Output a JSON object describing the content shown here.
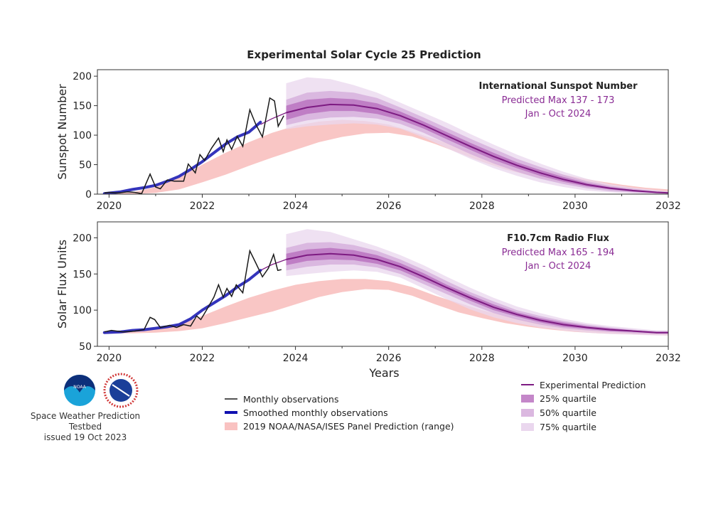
{
  "title": "Experimental Solar Cycle 25 Prediction",
  "footer": {
    "org": "Space Weather Prediction Testbed",
    "issued": "issued 19 Oct 2023",
    "logos": [
      "NOAA",
      "National Weather Service"
    ]
  },
  "legend_left": [
    "Monthly observations",
    "Smoothed monthly observations",
    "2019 NOAA/NASA/ISES Panel Prediction (range)"
  ],
  "legend_right": [
    "Experimental Prediction",
    "25% quartile",
    "50% quartile",
    "75% quartile"
  ],
  "colors": {
    "monthly": "#1a1a1a",
    "smoothed": "#1010b0",
    "panel": "#f6a8a6",
    "median": "#7d1b82",
    "q25": "#b05fb7",
    "q50": "#d2a6d8",
    "q75": "#ead7ee"
  },
  "chart_data": [
    {
      "type": "line",
      "ylabel": "Sunspot Number",
      "xlabel": "",
      "xlim": [
        2019.75,
        2032
      ],
      "ylim": [
        0,
        211
      ],
      "xticks": [
        2020,
        2022,
        2024,
        2026,
        2028,
        2030,
        2032
      ],
      "yticks": [
        0,
        50,
        100,
        150,
        200
      ],
      "annotation": {
        "title": "International Sunspot Number",
        "line1": "Predicted Max 137 - 173",
        "line2": "Jan - Oct 2024"
      },
      "monthly": {
        "x": [
          2019.9,
          2020.0,
          2020.2,
          2020.4,
          2020.55,
          2020.7,
          2020.88,
          2021.0,
          2021.1,
          2021.25,
          2021.4,
          2021.6,
          2021.7,
          2021.85,
          2021.95,
          2022.05,
          2022.2,
          2022.35,
          2022.45,
          2022.53,
          2022.63,
          2022.75,
          2022.87,
          2023.02,
          2023.15,
          2023.29,
          2023.45,
          2023.55,
          2023.63,
          2023.75
        ],
        "y": [
          2,
          3,
          2,
          4,
          3,
          1,
          34,
          12,
          9,
          24,
          22,
          22,
          51,
          36,
          67,
          57,
          78,
          95,
          72,
          92,
          76,
          98,
          81,
          143,
          118,
          97,
          163,
          158,
          115,
          133
        ]
      },
      "smoothed": {
        "x": [
          2019.9,
          2020.25,
          2020.5,
          2020.75,
          2021.0,
          2021.25,
          2021.5,
          2021.75,
          2022.0,
          2022.25,
          2022.5,
          2022.75,
          2023.0,
          2023.25
        ],
        "y": [
          1,
          4,
          8,
          11,
          15,
          22,
          30,
          42,
          55,
          70,
          85,
          97,
          105,
          122
        ]
      },
      "panel_range": {
        "x": [
          2019.75,
          2020.5,
          2021,
          2021.5,
          2022,
          2022.5,
          2023,
          2023.5,
          2024,
          2024.5,
          2025,
          2025.5,
          2026,
          2026.5,
          2027,
          2027.5,
          2028,
          2028.5,
          2029,
          2029.5,
          2030,
          2030.5,
          2031,
          2031.5,
          2032
        ],
        "lower": [
          0,
          0,
          2,
          8,
          20,
          33,
          48,
          62,
          75,
          88,
          97,
          103,
          104,
          98,
          85,
          70,
          55,
          42,
          32,
          23,
          16,
          10,
          6,
          3,
          2
        ],
        "upper": [
          0,
          3,
          12,
          28,
          50,
          70,
          88,
          104,
          116,
          123,
          126,
          124,
          118,
          106,
          93,
          80,
          67,
          56,
          46,
          37,
          29,
          22,
          16,
          11,
          8
        ]
      },
      "prediction": {
        "x": [
          2023.8,
          2024.25,
          2024.75,
          2025.25,
          2025.75,
          2026.25,
          2026.75,
          2027.25,
          2027.75,
          2028.25,
          2028.75,
          2029.25,
          2029.75,
          2030.25,
          2030.75,
          2031.25,
          2031.75,
          2032
        ],
        "median_lead": {
          "x": [
            2023.25,
            2023.5,
            2023.8
          ],
          "y": [
            118,
            128,
            138
          ]
        },
        "median": [
          138,
          147,
          152,
          151,
          145,
          133,
          117,
          99,
          81,
          64,
          49,
          36,
          25,
          16,
          10,
          6,
          3,
          2
        ],
        "q25": {
          "upper": [
            150,
            160,
            163,
            161,
            154,
            140,
            123,
            105,
            87,
            70,
            54,
            41,
            29,
            19,
            12,
            7,
            4,
            3
          ],
          "lower": [
            126,
            136,
            141,
            141,
            136,
            126,
            111,
            93,
            75,
            58,
            44,
            31,
            21,
            13,
            8,
            4,
            2,
            1
          ]
        },
        "q50": {
          "upper": [
            160,
            172,
            175,
            172,
            163,
            147,
            130,
            112,
            94,
            77,
            60,
            46,
            33,
            22,
            14,
            9,
            5,
            4
          ],
          "lower": [
            117,
            125,
            130,
            131,
            128,
            119,
            104,
            86,
            68,
            52,
            38,
            26,
            17,
            10,
            5,
            3,
            1,
            1
          ]
        },
        "q75": {
          "upper": [
            188,
            198,
            195,
            185,
            172,
            155,
            138,
            121,
            102,
            84,
            67,
            52,
            38,
            26,
            17,
            11,
            7,
            5
          ],
          "lower": [
            110,
            115,
            118,
            120,
            118,
            111,
            96,
            78,
            60,
            44,
            31,
            20,
            12,
            6,
            3,
            1,
            0,
            0
          ]
        }
      }
    },
    {
      "type": "line",
      "ylabel": "Solar Flux Units",
      "xlabel": "Years",
      "xlim": [
        2019.75,
        2032
      ],
      "ylim": [
        50,
        222
      ],
      "xticks": [
        2020,
        2022,
        2024,
        2026,
        2028,
        2030,
        2032
      ],
      "yticks": [
        50,
        100,
        150,
        200
      ],
      "annotation": {
        "title": "F10.7cm Radio Flux",
        "line1": "Predicted Max 165 - 194",
        "line2": "Jan - Oct 2024"
      },
      "monthly": {
        "x": [
          2019.9,
          2020.05,
          2020.3,
          2020.55,
          2020.75,
          2020.88,
          2020.98,
          2021.1,
          2021.3,
          2021.45,
          2021.6,
          2021.75,
          2021.88,
          2021.97,
          2022.1,
          2022.25,
          2022.35,
          2022.45,
          2022.53,
          2022.63,
          2022.73,
          2022.87,
          2023.02,
          2023.15,
          2023.29,
          2023.42,
          2023.53,
          2023.62,
          2023.7
        ],
        "y": [
          70,
          72,
          70,
          71,
          73,
          90,
          87,
          76,
          79,
          76,
          80,
          78,
          92,
          87,
          101,
          118,
          135,
          118,
          130,
          119,
          135,
          124,
          182,
          165,
          146,
          158,
          177,
          155,
          156
        ]
      },
      "smoothed": {
        "x": [
          2019.9,
          2020.25,
          2020.5,
          2020.75,
          2021.0,
          2021.25,
          2021.5,
          2021.75,
          2022.0,
          2022.25,
          2022.5,
          2022.75,
          2023.0,
          2023.25
        ],
        "y": [
          69,
          70,
          72,
          73,
          75,
          77,
          80,
          88,
          100,
          110,
          120,
          132,
          142,
          155
        ]
      },
      "panel_range": {
        "x": [
          2019.75,
          2020.5,
          2021,
          2021.5,
          2022,
          2022.5,
          2023,
          2023.5,
          2024,
          2024.5,
          2025,
          2025.5,
          2026,
          2026.5,
          2027,
          2027.5,
          2028,
          2028.5,
          2029,
          2029.5,
          2030,
          2030.5,
          2031,
          2031.5,
          2032
        ],
        "lower": [
          68,
          68,
          69,
          71,
          75,
          82,
          90,
          98,
          108,
          118,
          125,
          129,
          128,
          120,
          108,
          97,
          89,
          82,
          77,
          73,
          70,
          68,
          67,
          66,
          65
        ],
        "upper": [
          68,
          70,
          73,
          80,
          92,
          105,
          117,
          127,
          135,
          140,
          143,
          143,
          140,
          132,
          120,
          110,
          100,
          92,
          85,
          80,
          76,
          73,
          71,
          69,
          68
        ]
      },
      "prediction": {
        "x": [
          2023.8,
          2024.25,
          2024.75,
          2025.25,
          2025.75,
          2026.25,
          2026.75,
          2027.25,
          2027.75,
          2028.25,
          2028.75,
          2029.25,
          2029.75,
          2030.25,
          2030.75,
          2031.25,
          2031.75,
          2032
        ],
        "median_lead": {
          "x": [
            2023.25,
            2023.5,
            2023.8
          ],
          "y": [
            155,
            163,
            170
          ]
        },
        "median": [
          170,
          176,
          178,
          176,
          170,
          160,
          146,
          131,
          117,
          104,
          94,
          86,
          80,
          76,
          73,
          71,
          69,
          69
        ],
        "q25": {
          "upper": [
            178,
            184,
            186,
            183,
            176,
            165,
            151,
            135,
            121,
            108,
            97,
            89,
            83,
            78,
            75,
            72,
            70,
            70
          ],
          "lower": [
            162,
            168,
            170,
            169,
            164,
            155,
            141,
            127,
            113,
            100,
            91,
            83,
            77,
            74,
            71,
            70,
            68,
            68
          ]
        },
        "q50": {
          "upper": [
            186,
            193,
            194,
            190,
            182,
            170,
            156,
            140,
            125,
            112,
            100,
            92,
            85,
            80,
            76,
            73,
            71,
            71
          ],
          "lower": [
            155,
            160,
            163,
            163,
            159,
            150,
            136,
            122,
            108,
            96,
            87,
            80,
            75,
            72,
            70,
            68,
            67,
            67
          ]
        },
        "q75": {
          "upper": [
            205,
            212,
            208,
            198,
            188,
            176,
            162,
            146,
            131,
            117,
            105,
            96,
            88,
            82,
            78,
            75,
            72,
            72
          ],
          "lower": [
            147,
            150,
            153,
            155,
            153,
            145,
            130,
            115,
            101,
            90,
            82,
            76,
            72,
            69,
            67,
            66,
            65,
            65
          ]
        }
      }
    }
  ]
}
